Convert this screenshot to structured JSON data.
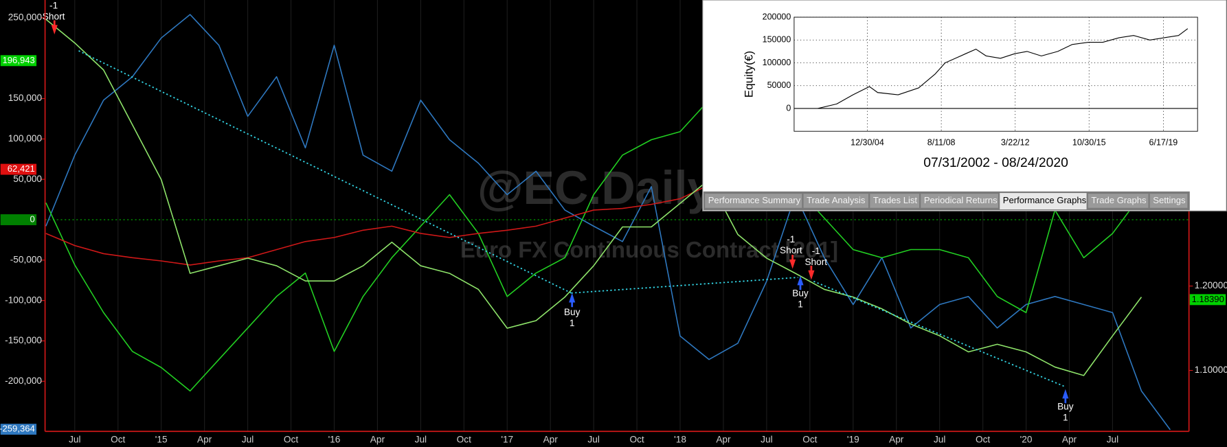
{
  "chart_data": [
    {
      "type": "line",
      "watermark_title": "@EC.Daily",
      "watermark_subtitle": "Euro FX Continuous Contract [201]",
      "x": [
        4,
        6,
        8,
        10,
        12,
        14,
        16,
        18,
        20,
        22,
        24,
        26,
        28,
        30,
        32,
        34,
        36,
        38,
        40,
        42,
        44,
        46,
        48,
        50,
        52,
        54,
        56,
        58,
        60,
        62,
        64,
        66,
        68,
        70,
        72,
        74,
        76,
        78,
        80,
        82
      ],
      "xlim": [
        3.94,
        83.3
      ],
      "xticks": [
        {
          "value": 6,
          "label": "Jul"
        },
        {
          "value": 9,
          "label": "Oct"
        },
        {
          "value": 12,
          "label": "'15"
        },
        {
          "value": 15,
          "label": "Apr"
        },
        {
          "value": 18,
          "label": "Jul"
        },
        {
          "value": 21,
          "label": "Oct"
        },
        {
          "value": 24,
          "label": "'16"
        },
        {
          "value": 27,
          "label": "Apr"
        },
        {
          "value": 30,
          "label": "Jul"
        },
        {
          "value": 33,
          "label": "Oct"
        },
        {
          "value": 36,
          "label": "'17"
        },
        {
          "value": 39,
          "label": "Apr"
        },
        {
          "value": 42,
          "label": "Jul"
        },
        {
          "value": 45,
          "label": "Oct"
        },
        {
          "value": 48,
          "label": "'18"
        },
        {
          "value": 51,
          "label": "Apr"
        },
        {
          "value": 54,
          "label": "Jul"
        },
        {
          "value": 57,
          "label": "Oct"
        },
        {
          "value": 60,
          "label": "'19"
        },
        {
          "value": 63,
          "label": "Apr"
        },
        {
          "value": 66,
          "label": "Jul"
        },
        {
          "value": 69,
          "label": "Oct"
        },
        {
          "value": 72,
          "label": "'20"
        },
        {
          "value": 75,
          "label": "Apr"
        },
        {
          "value": 78,
          "label": "Jul"
        }
      ],
      "grid": true,
      "ylim": [
        -262000,
        272000
      ],
      "yticks": [
        {
          "value": 250000,
          "label": "250,000"
        },
        {
          "value": 150000,
          "label": "150,000"
        },
        {
          "value": 100000,
          "label": "100,000"
        },
        {
          "value": 50000,
          "label": "50,000"
        },
        {
          "value": -50000,
          "label": "-50,000"
        },
        {
          "value": -100000,
          "label": "-100,000"
        },
        {
          "value": -150000,
          "label": "-150,000"
        },
        {
          "value": -200000,
          "label": "-200,000"
        }
      ],
      "y2lim": [
        1.0278,
        1.5389
      ],
      "y2ticks": [
        {
          "value": 1.2,
          "label": "1.20000"
        },
        {
          "value": 1.1,
          "label": "1.10000"
        }
      ],
      "series": [
        {
          "color": "#2e78c0",
          "values": [
            -8000,
            80000,
            148000,
            177000,
            225000,
            254000,
            216000,
            128000,
            177000,
            89000,
            216000,
            80000,
            60000,
            148000,
            99000,
            70000,
            31000,
            60000,
            12000,
            -8000,
            -27000,
            41000,
            -144000,
            -173000,
            -153000,
            -76000,
            31000,
            -47000,
            -105000,
            -47000,
            -134000,
            -105000,
            -95000,
            -134000,
            -105000,
            -95000,
            -105000,
            -115000,
            -212000,
            -260000
          ]
        },
        {
          "color": "#22d022",
          "values": [
            21000,
            -56000,
            -115000,
            -163000,
            -183000,
            -212000,
            -173000,
            -134000,
            -95000,
            -66000,
            -163000,
            -95000,
            -47000,
            -8000,
            31000,
            -17000,
            -95000,
            -66000,
            -47000,
            31000,
            80000,
            99000,
            109000,
            148000,
            80000,
            31000,
            41000,
            2000,
            -37000,
            -47000,
            -37000,
            -37000,
            -47000,
            -95000,
            -115000,
            12000,
            -47000,
            -17000,
            31000,
            21000
          ]
        },
        {
          "color": "#d01818",
          "values": [
            -17000,
            -32000,
            -42000,
            -47000,
            -51000,
            -56000,
            -51000,
            -47000,
            -37000,
            -27000,
            -22000,
            -13000,
            -8000,
            -17000,
            -22000,
            -17000,
            -13000,
            -8000,
            2000,
            12000,
            14000,
            19000,
            26000,
            43000,
            null,
            null,
            null,
            null,
            null,
            null,
            null,
            null,
            null,
            null,
            null,
            null,
            null,
            null,
            null,
            null
          ]
        },
        {
          "color": "#8ee46a",
          "axis": "y2",
          "values": [
            1.516,
            1.488,
            1.456,
            1.391,
            1.326,
            1.215,
            1.224,
            1.233,
            1.224,
            1.206,
            1.206,
            1.224,
            1.252,
            1.224,
            1.215,
            1.196,
            1.15,
            1.159,
            1.187,
            1.224,
            1.27,
            1.27,
            1.298,
            1.326,
            1.261,
            1.233,
            1.215,
            1.196,
            1.187,
            1.173,
            1.155,
            1.141,
            1.122,
            1.131,
            1.122,
            1.104,
            1.094,
            1.141,
            1.187,
            null
          ]
        }
      ],
      "last_value_labels": [
        {
          "value": 196943,
          "label": "196,943",
          "color": "#00d000"
        },
        {
          "value": 62421,
          "label": "62,421",
          "color": "#e01010"
        },
        {
          "value": 0,
          "label": "0",
          "color": "#008000"
        },
        {
          "value": -259364,
          "label": "-259,364",
          "color": "#2e78c0"
        },
        {
          "value": 1.1839,
          "label": "1.18390",
          "color": "#00d000",
          "axis": "y2"
        }
      ],
      "annotations": [
        [
          "-1",
          "Short"
        ],
        [
          "Buy",
          "1"
        ],
        [
          "-1",
          "Short"
        ],
        [
          "-1",
          "Short"
        ],
        [
          "Buy",
          "1"
        ],
        [
          "Buy",
          "1"
        ]
      ]
    },
    {
      "type": "line",
      "ylabel": "Equity(€)",
      "xlabel": "07/31/2002 - 08/24/2020",
      "x": [
        2002.58,
        2003.5,
        2004.3,
        2005.1,
        2005.5,
        2006.5,
        2007.5,
        2008.3,
        2008.8,
        2009.3,
        2009.8,
        2010.3,
        2010.8,
        2011.5,
        2012.2,
        2012.8,
        2013.5,
        2014.3,
        2015.0,
        2015.8,
        2016.5,
        2017.3,
        2018.0,
        2018.8,
        2019.5,
        2020.2,
        2020.65
      ],
      "xlim": [
        2001.42,
        2021.13
      ],
      "xticks": [
        {
          "value": 2004.997,
          "label": "12/30/04"
        },
        {
          "value": 2008.61,
          "label": "8/11/08"
        },
        {
          "value": 2012.22,
          "label": "3/22/12"
        },
        {
          "value": 2015.83,
          "label": "10/30/15"
        },
        {
          "value": 2019.46,
          "label": "6/17/19"
        }
      ],
      "ylim": [
        -50000,
        200000
      ],
      "yticks": [
        200000,
        150000,
        100000,
        50000,
        0
      ],
      "grid": true,
      "series": [
        {
          "color": "#000000",
          "values": [
            0,
            10000,
            30000,
            48000,
            35000,
            30000,
            45000,
            75000,
            100000,
            110000,
            120000,
            130000,
            115000,
            110000,
            120000,
            125000,
            115000,
            125000,
            140000,
            145000,
            145000,
            155000,
            160000,
            150000,
            155000,
            160000,
            175000
          ]
        }
      ]
    }
  ],
  "tabs": [
    "Performance Summary",
    "Trade Analysis",
    "Trades List",
    "Periodical Returns",
    "Performance Graphs",
    "Trade Graphs",
    "Settings"
  ],
  "active_tab": 4
}
